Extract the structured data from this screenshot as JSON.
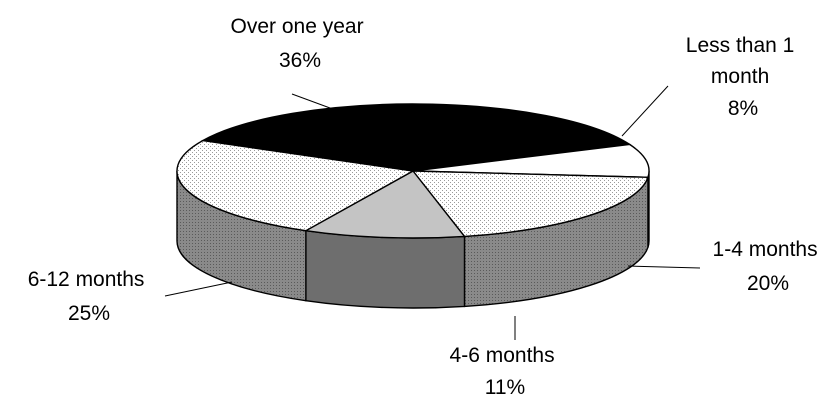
{
  "chart_data": {
    "type": "pie",
    "style": "3d",
    "title": "",
    "slices": [
      {
        "label_lines": [
          "Over one year",
          "36%"
        ],
        "value": 36,
        "color": "#000000"
      },
      {
        "label_lines": [
          "Less than 1",
          "month",
          "8%"
        ],
        "value": 8,
        "color": "#ffffff"
      },
      {
        "label_lines": [
          "1-4 months",
          "20%"
        ],
        "value": 20,
        "color": "#f7f7f7"
      },
      {
        "label_lines": [
          "4-6 months",
          "11%"
        ],
        "value": 11,
        "color": "#c4c4c4"
      },
      {
        "label_lines": [
          "6-12 months",
          "25%"
        ],
        "value": 25,
        "color": "#f0f0f0"
      }
    ],
    "legend": "none",
    "grid": false
  }
}
